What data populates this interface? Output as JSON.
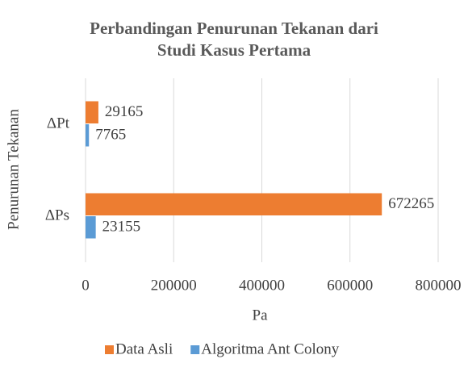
{
  "chart_data": {
    "type": "hbar",
    "title": "Perbandingan Penurunan Tekanan dari Studi Kasus Pertama",
    "categories": [
      "ΔPt",
      "ΔPs"
    ],
    "series": [
      {
        "name": "Data Asli",
        "color": "#ED7D31",
        "values": [
          29165,
          672265
        ]
      },
      {
        "name": "Algoritma Ant Colony",
        "color": "#5B9BD5",
        "values": [
          7765,
          23155
        ]
      }
    ],
    "xlim": [
      0,
      800000
    ],
    "xticks": [
      0,
      200000,
      400000,
      600000,
      800000
    ],
    "xlabel": "Pa",
    "ylabel": "Penurunan Tekanan",
    "grid": true,
    "legend": "bottom"
  }
}
